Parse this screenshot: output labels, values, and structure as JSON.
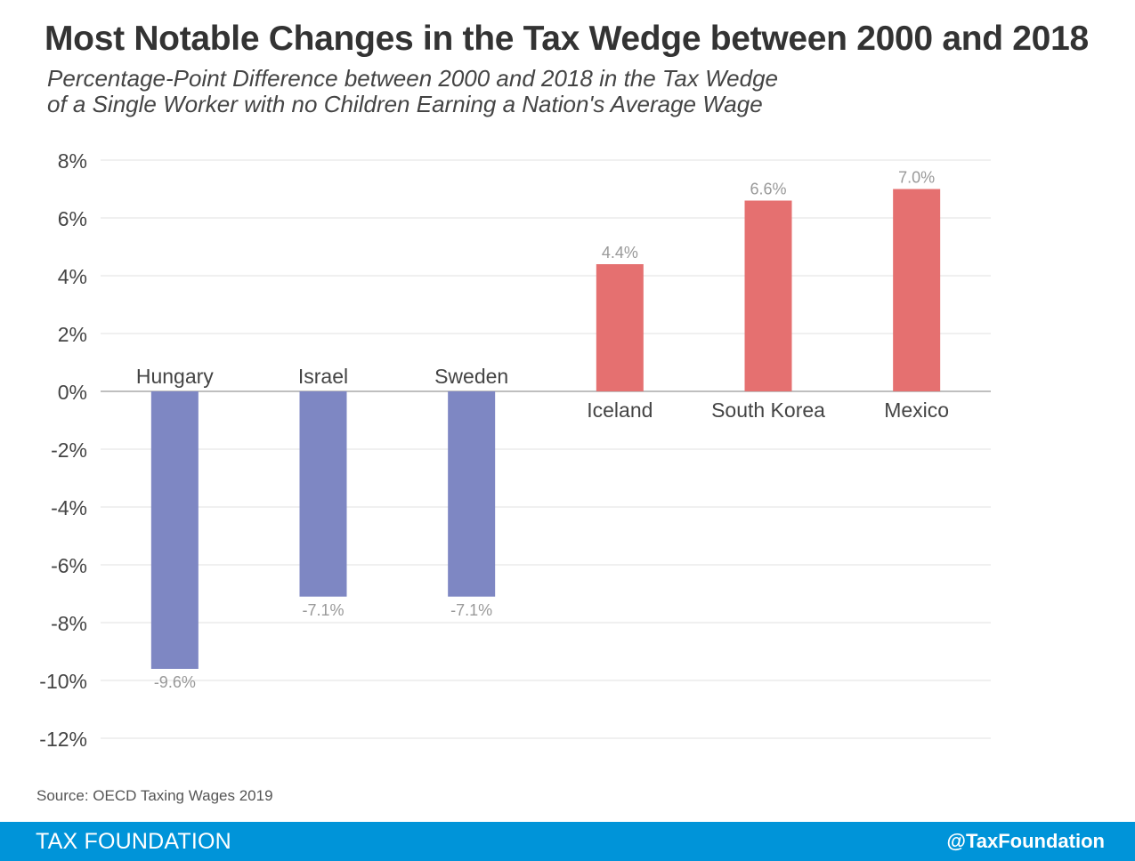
{
  "header": {
    "title": "Most Notable Changes in the Tax Wedge between 2000 and 2018",
    "subtitle_line1": "Percentage-Point Difference between 2000 and 2018 in the Tax Wedge",
    "subtitle_line2": "of a Single Worker with no Children Earning a Nation's Average Wage"
  },
  "source": "Source: OECD Taxing Wages 2019",
  "footer": {
    "brand": "TAX FOUNDATION",
    "handle": "@TaxFoundation"
  },
  "colors": {
    "negative": "#7e87c3",
    "positive": "#e57070",
    "footer": "#0094d9"
  },
  "chart_data": {
    "type": "bar",
    "categories": [
      "Hungary",
      "Israel",
      "Sweden",
      "Iceland",
      "South Korea",
      "Mexico"
    ],
    "values": [
      -9.6,
      -7.1,
      -7.1,
      4.4,
      6.6,
      7.0
    ],
    "data_labels": [
      "-9.6%",
      "-7.1%",
      "-7.1%",
      "4.4%",
      "6.6%",
      "7.0%"
    ],
    "ylim": [
      -12,
      8
    ],
    "yticks": [
      8,
      6,
      4,
      2,
      0,
      -2,
      -4,
      -6,
      -8,
      -10,
      -12
    ],
    "ytick_labels": [
      "8%",
      "6%",
      "4%",
      "2%",
      "0%",
      "-2%",
      "-4%",
      "-6%",
      "-8%",
      "-10%",
      "-12%"
    ],
    "grid": true,
    "xlabel": "",
    "ylabel": ""
  }
}
